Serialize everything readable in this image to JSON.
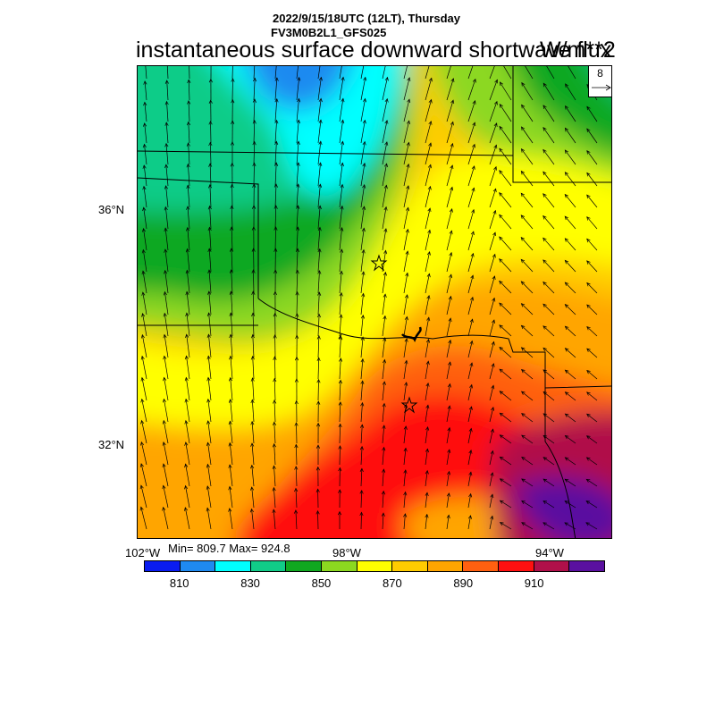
{
  "header": {
    "line1": "2022/9/15/18UTC (12LT), Thursday",
    "line2": "FV3M0B2L1_GFS025",
    "title": "instantaneous surface downward shortwave flux",
    "units": "W/m**2"
  },
  "axes": {
    "lat_labels": [
      "36°N",
      "32°N"
    ],
    "lon_labels": [
      "102°W",
      "98°W",
      "94°W"
    ]
  },
  "stats": "Min= 809.7 Max= 924.8",
  "vector_reference": "8",
  "colorbar": {
    "colors": [
      "#0a1cf0",
      "#1f8af0",
      "#00ffff",
      "#11cc88",
      "#10a820",
      "#8cd820",
      "#ffff00",
      "#ffcc00",
      "#ffa500",
      "#ff6010",
      "#ff1010",
      "#b0104a",
      "#5a10a0"
    ],
    "labels": [
      "810",
      "830",
      "850",
      "870",
      "890",
      "910"
    ]
  },
  "map": {
    "stations": [
      "star-north",
      "star-south"
    ]
  }
}
